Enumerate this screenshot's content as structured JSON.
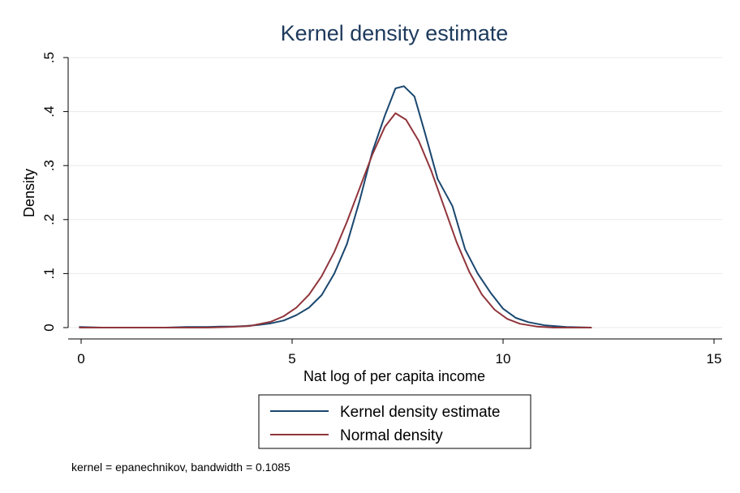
{
  "chart_data": {
    "type": "line",
    "title": "Kernel density estimate",
    "xlabel": "Nat log of per capita income",
    "ylabel": "Density",
    "xlim": [
      -0.5,
      15.3
    ],
    "ylim": [
      0,
      0.5
    ],
    "x_ticks": [
      0,
      5,
      10,
      15
    ],
    "x_tick_labels": [
      "0",
      "5",
      "10",
      "15"
    ],
    "y_ticks": [
      0,
      0.1,
      0.2,
      0.3,
      0.4,
      0.5
    ],
    "y_tick_labels": [
      "0",
      ".1",
      ".2",
      ".3",
      ".4",
      ".5"
    ],
    "grid": true,
    "legend_placement": "bottom",
    "note": "kernel = epanechnikov, bandwidth = 0.1085",
    "series": [
      {
        "name": "Kernel density estimate",
        "color": "#1a476f",
        "x": [
          -0.05,
          0.5,
          1.0,
          1.5,
          2.0,
          2.5,
          3.0,
          3.3,
          3.6,
          3.9,
          4.2,
          4.5,
          4.8,
          5.1,
          5.4,
          5.7,
          6.0,
          6.3,
          6.6,
          6.9,
          7.2,
          7.45,
          7.65,
          7.9,
          8.15,
          8.45,
          8.8,
          9.1,
          9.4,
          9.7,
          10.0,
          10.3,
          10.6,
          11.0,
          11.5,
          12.1
        ],
        "y": [
          0.001,
          0.0,
          0.0,
          0.0,
          0.0,
          0.001,
          0.001,
          0.002,
          0.002,
          0.003,
          0.005,
          0.008,
          0.013,
          0.023,
          0.037,
          0.06,
          0.1,
          0.155,
          0.235,
          0.325,
          0.393,
          0.443,
          0.447,
          0.428,
          0.36,
          0.275,
          0.225,
          0.145,
          0.1,
          0.065,
          0.035,
          0.018,
          0.01,
          0.004,
          0.001,
          0.0
        ]
      },
      {
        "name": "Normal density",
        "color": "#90353b",
        "x": [
          -0.05,
          0.5,
          1.0,
          1.5,
          2.0,
          2.5,
          3.0,
          3.5,
          4.0,
          4.5,
          4.8,
          5.1,
          5.4,
          5.7,
          6.0,
          6.3,
          6.6,
          6.9,
          7.2,
          7.45,
          7.7,
          8.0,
          8.3,
          8.6,
          8.9,
          9.2,
          9.5,
          9.8,
          10.1,
          10.4,
          10.8,
          11.2,
          11.6,
          12.1
        ],
        "y": [
          0.0,
          0.0,
          0.0,
          0.0,
          0.0,
          0.0,
          0.0,
          0.001,
          0.003,
          0.011,
          0.021,
          0.037,
          0.061,
          0.095,
          0.14,
          0.196,
          0.258,
          0.32,
          0.372,
          0.397,
          0.385,
          0.346,
          0.29,
          0.224,
          0.158,
          0.103,
          0.061,
          0.033,
          0.016,
          0.007,
          0.002,
          0.0,
          0.0,
          0.0
        ]
      }
    ]
  }
}
